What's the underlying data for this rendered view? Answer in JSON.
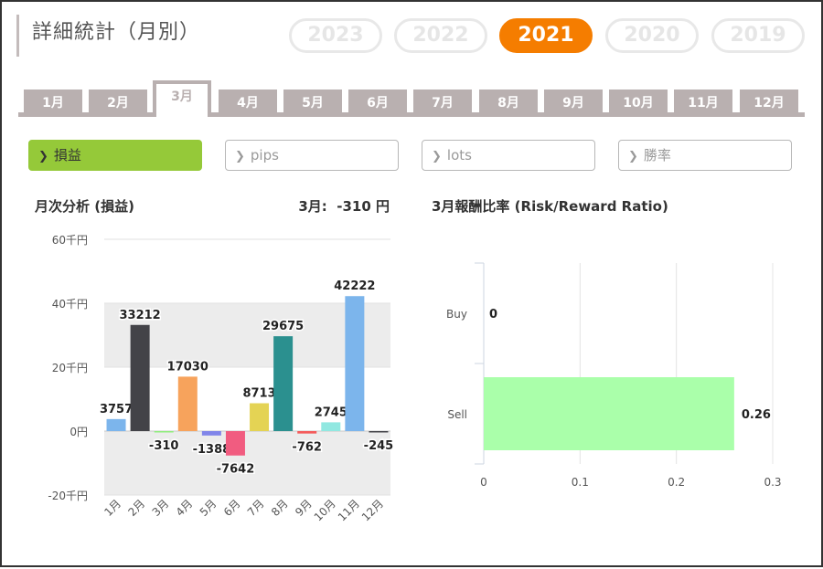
{
  "page_title": "詳細統計（月別）",
  "years": [
    "2023",
    "2022",
    "2021",
    "2020",
    "2019"
  ],
  "active_year": "2021",
  "months": [
    "1月",
    "2月",
    "3月",
    "4月",
    "5月",
    "6月",
    "7月",
    "8月",
    "9月",
    "10月",
    "11月",
    "12月"
  ],
  "active_month": "3月",
  "metrics": [
    {
      "label": "損益",
      "active": true
    },
    {
      "label": "pips",
      "active": false
    },
    {
      "label": "lots",
      "active": false
    },
    {
      "label": "勝率",
      "active": false
    }
  ],
  "icons": {
    "metric_chevron": "chevron-right-icon"
  },
  "colors": {
    "accent_orange": "#f57d00",
    "active_metric_green": "#95c939",
    "tab_gray": "#b9b0b0",
    "sell_bar": "#aaffaa"
  },
  "left_panel": {
    "title": "月次分析 (損益)",
    "summary": "3月:  -310 円"
  },
  "right_panel": {
    "title": "3月報酬比率 (Risk/Reward Ratio)"
  },
  "chart_data": [
    {
      "type": "bar",
      "title": "月次分析 (損益)",
      "categories": [
        "1月",
        "2月",
        "3月",
        "4月",
        "5月",
        "6月",
        "7月",
        "8月",
        "9月",
        "10月",
        "11月",
        "12月"
      ],
      "values": [
        3757,
        33212,
        -310,
        17030,
        -1388,
        -7642,
        8713,
        29675,
        -762,
        2745,
        42222,
        -245
      ],
      "colors": [
        "#7cb5ec",
        "#434348",
        "#90ed7d",
        "#f7a35c",
        "#8085e9",
        "#f15c80",
        "#e4d354",
        "#2b908f",
        "#f45b5b",
        "#91e8e1",
        "#7cb5ec",
        "#434348"
      ],
      "y_ticks": [
        "60千円",
        "40千円",
        "20千円",
        "0円",
        "-20千円"
      ],
      "y_tick_values": [
        60000,
        40000,
        20000,
        0,
        -20000
      ],
      "ylim": [
        -20000,
        60000
      ],
      "grid": true
    },
    {
      "type": "bar",
      "orientation": "horizontal",
      "title": "3月報酬比率 (Risk/Reward Ratio)",
      "categories": [
        "Buy",
        "Sell"
      ],
      "values": [
        0,
        0.26
      ],
      "value_labels": [
        "0",
        "0.26"
      ],
      "x_ticks": [
        "0",
        "0.1",
        "0.2",
        "0.3"
      ],
      "x_tick_values": [
        0,
        0.1,
        0.2,
        0.3
      ],
      "xlim": [
        0,
        0.3
      ],
      "grid": true
    }
  ]
}
